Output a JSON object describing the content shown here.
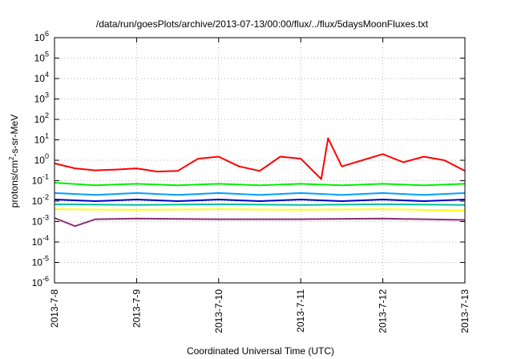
{
  "chart_data": {
    "type": "line",
    "title": "/data/run/goesPlots/archive/2013-07-13/00:00/flux/../flux/5daysMoonFluxes.txt",
    "xlabel": "Coordinated Universal Time (UTC)",
    "ylabel_parts": [
      "protons/cm",
      "2",
      "-s-sr-MeV"
    ],
    "yscale": "log",
    "ylim_exp": [
      -6,
      6
    ],
    "y_ticks": [
      {
        "base": "10",
        "exp": "-6"
      },
      {
        "base": "10",
        "exp": "-5"
      },
      {
        "base": "10",
        "exp": "-4"
      },
      {
        "base": "10",
        "exp": "-3"
      },
      {
        "base": "10",
        "exp": "-2"
      },
      {
        "base": "10",
        "exp": "-1"
      },
      {
        "base": "10",
        "exp": "0"
      },
      {
        "base": "10",
        "exp": "1"
      },
      {
        "base": "10",
        "exp": "2"
      },
      {
        "base": "10",
        "exp": "3"
      },
      {
        "base": "10",
        "exp": "4"
      },
      {
        "base": "10",
        "exp": "5"
      },
      {
        "base": "10",
        "exp": "6"
      }
    ],
    "x_ticks": [
      "2013-7-8",
      "2013-7-9",
      "2013-7-10",
      "2013-7-11",
      "2013-7-12",
      "2013-7-13"
    ],
    "x_range": [
      "2013-07-08T00:00",
      "2013-07-13T00:00"
    ],
    "grid": true,
    "series": [
      {
        "color": "#ff0000",
        "points": [
          [
            "2013-07-08T00:00",
            0.7
          ],
          [
            "2013-07-08T06:00",
            0.4
          ],
          [
            "2013-07-08T12:00",
            0.32
          ],
          [
            "2013-07-08T18:00",
            0.35
          ],
          [
            "2013-07-09T00:00",
            0.4
          ],
          [
            "2013-07-09T06:00",
            0.28
          ],
          [
            "2013-07-09T12:00",
            0.3
          ],
          [
            "2013-07-09T18:00",
            1.2
          ],
          [
            "2013-07-10T00:00",
            1.5
          ],
          [
            "2013-07-10T06:00",
            0.5
          ],
          [
            "2013-07-10T12:00",
            0.3
          ],
          [
            "2013-07-10T18:00",
            1.5
          ],
          [
            "2013-07-11T00:00",
            1.2
          ],
          [
            "2013-07-11T06:00",
            0.12
          ],
          [
            "2013-07-11T08:00",
            12
          ],
          [
            "2013-07-11T12:00",
            0.5
          ],
          [
            "2013-07-11T18:00",
            1.0
          ],
          [
            "2013-07-12T00:00",
            2.0
          ],
          [
            "2013-07-12T06:00",
            0.8
          ],
          [
            "2013-07-12T12:00",
            1.5
          ],
          [
            "2013-07-12T18:00",
            1.0
          ],
          [
            "2013-07-13T00:00",
            0.3
          ]
        ]
      },
      {
        "color": "#00ee00",
        "points": [
          [
            "2013-07-08T00:00",
            0.08
          ],
          [
            "2013-07-08T12:00",
            0.06
          ],
          [
            "2013-07-09T00:00",
            0.07
          ],
          [
            "2013-07-09T12:00",
            0.06
          ],
          [
            "2013-07-10T00:00",
            0.07
          ],
          [
            "2013-07-10T12:00",
            0.06
          ],
          [
            "2013-07-11T00:00",
            0.07
          ],
          [
            "2013-07-11T12:00",
            0.06
          ],
          [
            "2013-07-12T00:00",
            0.07
          ],
          [
            "2013-07-12T12:00",
            0.06
          ],
          [
            "2013-07-13T00:00",
            0.07
          ]
        ]
      },
      {
        "color": "#00a0ff",
        "points": [
          [
            "2013-07-08T00:00",
            0.025
          ],
          [
            "2013-07-08T12:00",
            0.02
          ],
          [
            "2013-07-09T00:00",
            0.025
          ],
          [
            "2013-07-09T12:00",
            0.02
          ],
          [
            "2013-07-10T00:00",
            0.025
          ],
          [
            "2013-07-10T12:00",
            0.02
          ],
          [
            "2013-07-11T00:00",
            0.025
          ],
          [
            "2013-07-11T12:00",
            0.02
          ],
          [
            "2013-07-12T00:00",
            0.025
          ],
          [
            "2013-07-12T12:00",
            0.02
          ],
          [
            "2013-07-13T00:00",
            0.025
          ]
        ]
      },
      {
        "color": "#0000cc",
        "points": [
          [
            "2013-07-08T00:00",
            0.012
          ],
          [
            "2013-07-08T12:00",
            0.01
          ],
          [
            "2013-07-09T00:00",
            0.012
          ],
          [
            "2013-07-09T12:00",
            0.01
          ],
          [
            "2013-07-10T00:00",
            0.012
          ],
          [
            "2013-07-10T12:00",
            0.01
          ],
          [
            "2013-07-11T00:00",
            0.012
          ],
          [
            "2013-07-11T12:00",
            0.01
          ],
          [
            "2013-07-12T00:00",
            0.012
          ],
          [
            "2013-07-12T12:00",
            0.01
          ],
          [
            "2013-07-13T00:00",
            0.012
          ]
        ]
      },
      {
        "color": "#00c0a0",
        "points": [
          [
            "2013-07-08T00:00",
            0.007
          ],
          [
            "2013-07-09T00:00",
            0.0065
          ],
          [
            "2013-07-10T00:00",
            0.007
          ],
          [
            "2013-07-11T00:00",
            0.0065
          ],
          [
            "2013-07-12T00:00",
            0.007
          ],
          [
            "2013-07-13T00:00",
            0.0065
          ]
        ]
      },
      {
        "color": "#ffff00",
        "points": [
          [
            "2013-07-08T00:00",
            0.004
          ],
          [
            "2013-07-09T00:00",
            0.0038
          ],
          [
            "2013-07-10T00:00",
            0.004
          ],
          [
            "2013-07-11T00:00",
            0.0038
          ],
          [
            "2013-07-12T00:00",
            0.004
          ],
          [
            "2013-07-13T00:00",
            0.0035
          ]
        ]
      },
      {
        "color": "#8b2f6f",
        "points": [
          [
            "2013-07-08T00:00",
            0.0015
          ],
          [
            "2013-07-08T06:00",
            0.0006
          ],
          [
            "2013-07-08T12:00",
            0.0013
          ],
          [
            "2013-07-09T00:00",
            0.0014
          ],
          [
            "2013-07-10T00:00",
            0.0013
          ],
          [
            "2013-07-11T00:00",
            0.0013
          ],
          [
            "2013-07-12T00:00",
            0.0014
          ],
          [
            "2013-07-13T00:00",
            0.0012
          ]
        ]
      }
    ]
  }
}
